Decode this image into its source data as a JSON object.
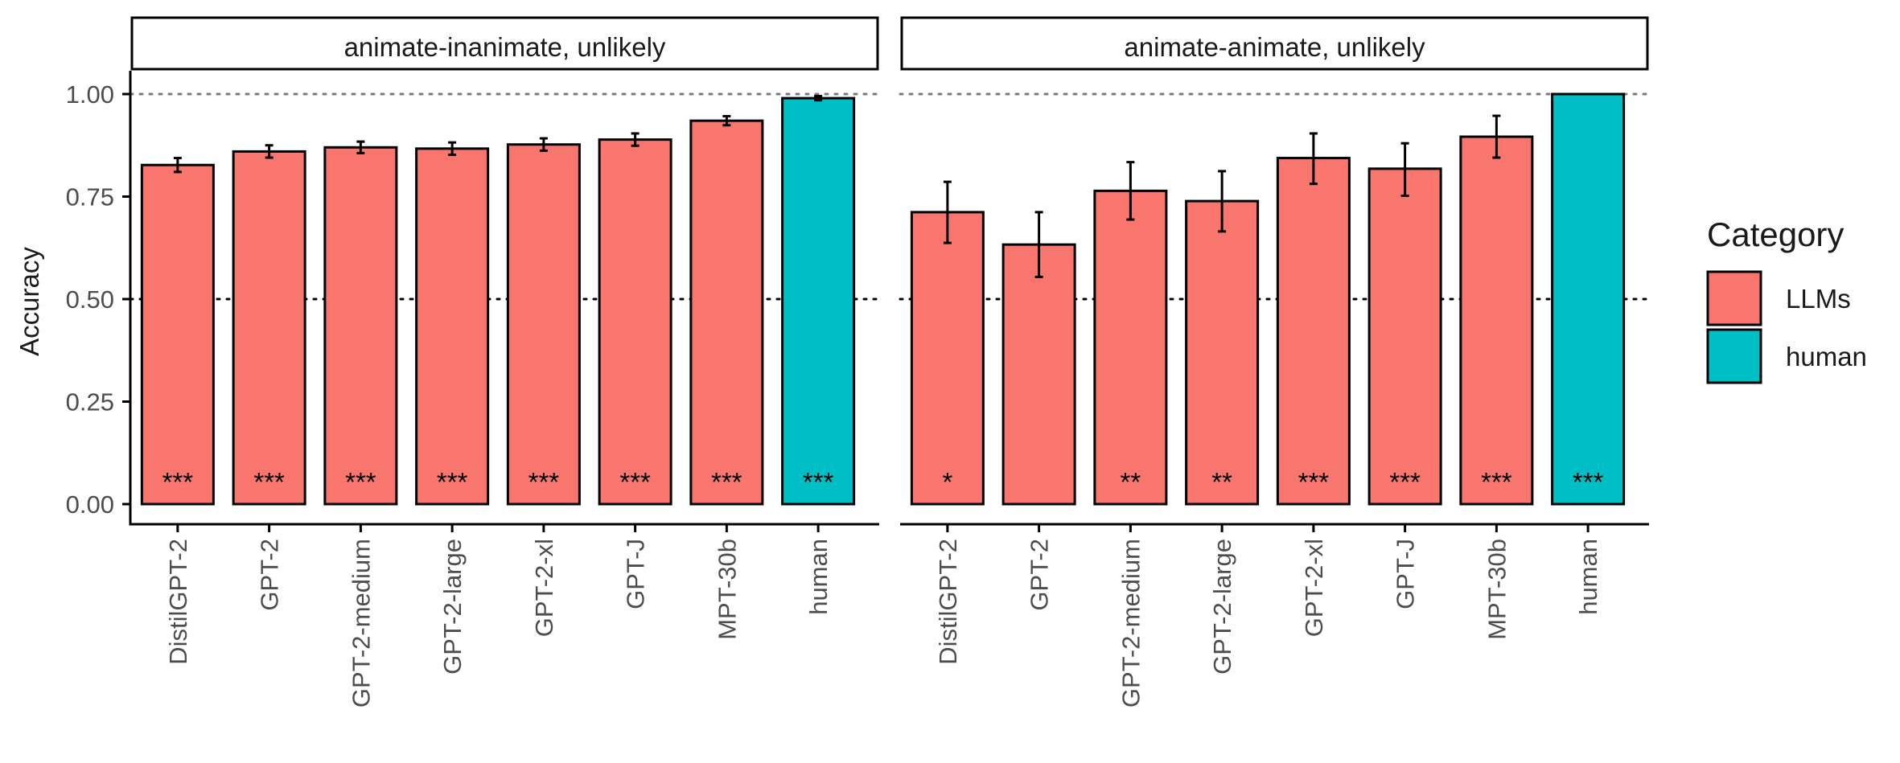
{
  "chart_data": {
    "type": "bar",
    "ylabel": "Accuracy",
    "ylim": [
      0,
      1.05
    ],
    "yticks": [
      "0.00",
      "0.25",
      "0.50",
      "0.75",
      "1.00"
    ],
    "reference_lines": [
      0.5,
      1.0
    ],
    "grid": false,
    "legend": {
      "title": "Category",
      "position": "right",
      "entries": [
        {
          "name": "LLMs",
          "color": "#F8766D"
        },
        {
          "name": "human",
          "color": "#00BFC4"
        }
      ]
    },
    "categories": [
      "DistilGPT-2",
      "GPT-2",
      "GPT-2-medium",
      "GPT-2-large",
      "GPT-2-xl",
      "GPT-J",
      "MPT-30b",
      "human"
    ],
    "category_group": [
      "LLMs",
      "LLMs",
      "LLMs",
      "LLMs",
      "LLMs",
      "LLMs",
      "LLMs",
      "human"
    ],
    "panels": [
      {
        "title": "animate-inanimate, unlikely",
        "values": [
          0.827,
          0.86,
          0.87,
          0.867,
          0.877,
          0.889,
          0.935,
          0.99
        ],
        "err_low": [
          0.81,
          0.845,
          0.856,
          0.852,
          0.862,
          0.874,
          0.924,
          0.985
        ],
        "err_high": [
          0.844,
          0.875,
          0.884,
          0.882,
          0.892,
          0.904,
          0.946,
          0.995
        ],
        "significance": [
          "***",
          "***",
          "***",
          "***",
          "***",
          "***",
          "***",
          "***"
        ]
      },
      {
        "title": "animate-animate, unlikely",
        "values": [
          0.712,
          0.633,
          0.764,
          0.739,
          0.844,
          0.818,
          0.896,
          1.0
        ],
        "err_low": [
          0.637,
          0.554,
          0.694,
          0.665,
          0.781,
          0.752,
          0.845,
          1.0
        ],
        "err_high": [
          0.786,
          0.712,
          0.834,
          0.812,
          0.904,
          0.88,
          0.947,
          1.0
        ],
        "significance": [
          "*",
          "",
          "**",
          "**",
          "***",
          "***",
          "***",
          "***"
        ]
      }
    ]
  }
}
